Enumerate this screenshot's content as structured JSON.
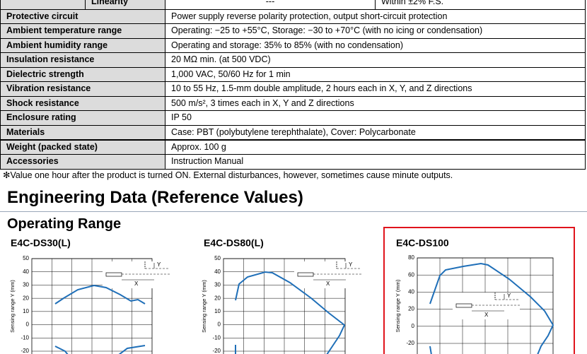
{
  "table": {
    "top_row": [
      "Linearity",
      "---",
      "Within ±2% F.S."
    ],
    "rows": [
      [
        "Protective circuit",
        "Power supply reverse polarity protection, output short-circuit protection"
      ],
      [
        "Ambient temperature range",
        "Operating: −25 to +55°C, Storage: −30 to +70°C (with no icing or condensation)"
      ],
      [
        "Ambient humidity range",
        "Operating and storage: 35% to 85% (with no condensation)"
      ],
      [
        "Insulation resistance",
        "20 MΩ min. (at 500 VDC)"
      ],
      [
        "Dielectric strength",
        "1,000 VAC, 50/60 Hz for 1 min"
      ],
      [
        "Vibration resistance",
        "10 to 55 Hz, 1.5-mm double amplitude, 2 hours each in X, Y, and Z directions"
      ],
      [
        "Shock resistance",
        "500 m/s², 3 times each in X, Y and Z directions"
      ],
      [
        "Enclosure rating",
        "IP 50"
      ],
      [
        "Materials",
        "Case: PBT (polybutylene terephthalate), Cover: Polycarbonate"
      ],
      [
        "Weight (packed state)",
        "Approx. 100 g"
      ],
      [
        "Accessories",
        "Instruction Manual"
      ]
    ]
  },
  "footnote": "✻Value one hour after the product is turned ON. External disturbances, however, sometimes cause minute outputs.",
  "heading": "Engineering Data (Reference Values)",
  "subheading": "Operating Range",
  "charts": [
    {
      "title": "E4C-DS30(L)",
      "y_label": "Sensing range Y (mm)",
      "inset_labels": [
        "Y",
        "X"
      ],
      "ylim": [
        -20,
        50
      ],
      "yticks": [
        50,
        40,
        30,
        20,
        10,
        0,
        -10,
        -20
      ]
    },
    {
      "title": "E4C-DS80(L)",
      "y_label": "Sensing range Y (mm)",
      "inset_labels": [
        "Y",
        "X"
      ],
      "ylim": [
        -20,
        50
      ],
      "yticks": [
        50,
        40,
        30,
        20,
        10,
        0,
        -10,
        -20
      ]
    },
    {
      "title": "E4C-DS100",
      "y_label": "Sensing range Y (mm)",
      "inset_labels": [
        "Y",
        "X"
      ],
      "ylim": [
        -20,
        80
      ],
      "yticks": [
        80,
        60,
        40,
        20,
        0,
        -20
      ]
    }
  ]
}
